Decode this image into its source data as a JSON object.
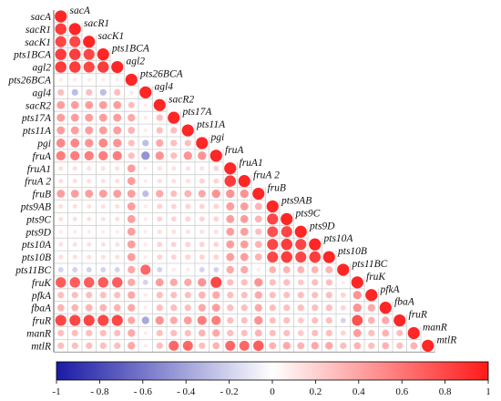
{
  "chart_data": {
    "type": "heatmap",
    "variables": [
      "sacA",
      "sacR1",
      "sacK1",
      "pts1BCA",
      "agl2",
      "pts26BCA",
      "agl4",
      "sacR2",
      "pts17A",
      "pts11A",
      "pgi",
      "fruA",
      "fruA1",
      "fruA 2",
      "fruB",
      "pts9AB",
      "pts9C",
      "pts9D",
      "pts10A",
      "pts10B",
      "pts11BC",
      "fruK",
      "pfkA",
      "fbaA",
      "fruR",
      "manR",
      "mtlR"
    ],
    "display": "lower-triangle circles sized and colored by correlation, variable names on the diagonal",
    "colorbar": {
      "range": [
        -1,
        1
      ],
      "ticks": [
        "-1",
        "- 0.8",
        "- 0.6",
        "- 0.4",
        "- 0.2",
        "0",
        "0.2",
        "0.4",
        "0.6",
        "0.8",
        "1"
      ],
      "colors": {
        "negative": "#1a1aa6",
        "zero": "#ffffff",
        "positive": "#ff1a1a"
      }
    },
    "matrix": [
      [
        1
      ],
      [
        0.9,
        1
      ],
      [
        0.85,
        0.85,
        1
      ],
      [
        0.9,
        0.9,
        0.85,
        1
      ],
      [
        0.9,
        0.9,
        0.85,
        0.9,
        1
      ],
      [
        0.1,
        0.1,
        0.1,
        0.1,
        0.1,
        1
      ],
      [
        0.3,
        -0.3,
        0.3,
        -0.3,
        0.3,
        0.1,
        1
      ],
      [
        0.45,
        0.45,
        0.45,
        0.45,
        0.45,
        0.3,
        0.1,
        1
      ],
      [
        0.45,
        0.45,
        0.45,
        0.45,
        0.45,
        0.4,
        0.1,
        0.3,
        1
      ],
      [
        0.45,
        0.45,
        0.45,
        0.45,
        0.45,
        0.35,
        0.1,
        0.3,
        0.3,
        1
      ],
      [
        0.55,
        0.55,
        0.5,
        0.55,
        0.5,
        0.3,
        -0.3,
        0.4,
        0.3,
        0.3,
        1
      ],
      [
        0.6,
        0.6,
        0.6,
        0.6,
        0.6,
        0.3,
        -0.5,
        0.5,
        0.3,
        0.5,
        0.5,
        1
      ],
      [
        0.15,
        0.15,
        0.15,
        0.15,
        0.15,
        0.45,
        0.1,
        0.15,
        0.15,
        0.15,
        0.15,
        0.2,
        1
      ],
      [
        0.15,
        0.15,
        0.15,
        0.15,
        0.15,
        0.45,
        0.1,
        0.15,
        0.15,
        0.15,
        0.2,
        0.2,
        0.9,
        1
      ],
      [
        0.45,
        0.45,
        0.45,
        0.45,
        0.45,
        0.45,
        -0.3,
        0.4,
        0.3,
        0.35,
        0.4,
        0.5,
        0.5,
        0.5,
        1
      ],
      [
        0.15,
        0.15,
        0.15,
        0.15,
        0.15,
        0.45,
        0.1,
        0.2,
        0.2,
        0.2,
        0.2,
        0.2,
        0.45,
        0.45,
        0.35,
        1
      ],
      [
        0.15,
        0.15,
        0.15,
        0.15,
        0.15,
        0.45,
        0.1,
        0.2,
        0.2,
        0.2,
        0.2,
        0.2,
        0.45,
        0.45,
        0.35,
        0.85,
        1
      ],
      [
        0.1,
        0.1,
        0.1,
        0.1,
        0.1,
        0.45,
        0.1,
        0.15,
        0.15,
        0.15,
        0.15,
        0.15,
        0.45,
        0.45,
        0.3,
        0.8,
        0.85,
        1
      ],
      [
        0.15,
        0.15,
        0.15,
        0.15,
        0.15,
        0.45,
        0.1,
        0.2,
        0.2,
        0.2,
        0.2,
        0.2,
        0.45,
        0.45,
        0.35,
        0.85,
        0.9,
        0.85,
        1
      ],
      [
        0.15,
        0.15,
        0.15,
        0.15,
        0.15,
        0.45,
        0.1,
        0.2,
        0.2,
        0.2,
        0.2,
        0.2,
        0.45,
        0.45,
        0.35,
        0.85,
        0.9,
        0.85,
        0.9,
        1
      ],
      [
        -0.2,
        -0.2,
        -0.2,
        -0.2,
        -0.2,
        0.4,
        0.7,
        -0.2,
        0.1,
        0.1,
        -0.2,
        -0.2,
        0.4,
        0.4,
        0.1,
        0.35,
        0.35,
        0.35,
        0.35,
        0.35,
        1
      ],
      [
        0.75,
        0.75,
        0.75,
        0.75,
        0.75,
        0.4,
        -0.2,
        0.45,
        0.4,
        0.4,
        0.5,
        0.85,
        0.3,
        0.3,
        0.5,
        0.3,
        0.3,
        0.25,
        0.3,
        0.3,
        0.1,
        1
      ],
      [
        0.3,
        0.3,
        0.3,
        0.3,
        0.3,
        0.4,
        0.1,
        0.3,
        0.3,
        0.3,
        0.35,
        0.4,
        0.3,
        0.3,
        0.4,
        0.3,
        0.3,
        0.3,
        0.3,
        0.3,
        0.2,
        0.5,
        1
      ],
      [
        0.35,
        0.35,
        0.35,
        0.35,
        0.35,
        0.4,
        0.1,
        0.3,
        0.3,
        0.3,
        0.4,
        0.45,
        0.3,
        0.3,
        0.4,
        0.3,
        0.3,
        0.3,
        0.3,
        0.3,
        0.2,
        0.5,
        0.4,
        1
      ],
      [
        0.85,
        0.85,
        0.85,
        0.85,
        0.85,
        0.4,
        -0.4,
        0.5,
        0.4,
        0.45,
        0.6,
        0.6,
        0.3,
        0.3,
        0.5,
        0.3,
        0.3,
        0.25,
        0.3,
        0.3,
        -0.2,
        0.8,
        0.35,
        0.4,
        1
      ],
      [
        0.3,
        0.3,
        0.3,
        0.3,
        0.3,
        0.4,
        0.1,
        0.3,
        0.3,
        0.3,
        0.35,
        0.4,
        0.3,
        0.3,
        0.35,
        0.3,
        0.3,
        0.25,
        0.3,
        0.3,
        0.2,
        0.45,
        0.3,
        0.35,
        0.3,
        1
      ],
      [
        0.3,
        0.3,
        0.3,
        0.3,
        0.3,
        0.4,
        0.1,
        0.3,
        0.7,
        0.7,
        0.3,
        0.35,
        0.7,
        0.7,
        0.75,
        0.35,
        0.4,
        0.35,
        0.4,
        0.4,
        0.3,
        0.35,
        0.3,
        0.35,
        0.3,
        0.35,
        1
      ]
    ]
  }
}
